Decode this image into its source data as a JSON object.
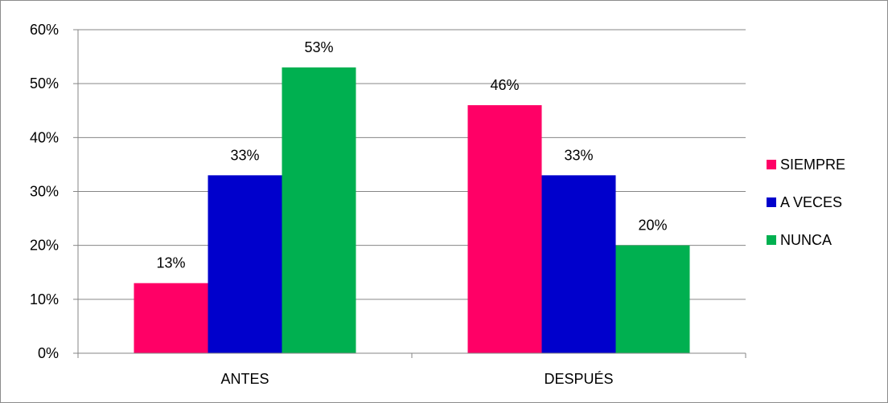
{
  "chart_data": {
    "type": "bar",
    "categories": [
      "ANTES",
      "DESPUÉS"
    ],
    "series": [
      {
        "name": "SIEMPRE",
        "values": [
          13,
          46
        ],
        "labels": [
          "13%",
          "46%"
        ],
        "color": "#ff0066"
      },
      {
        "name": "A VECES",
        "values": [
          33,
          33
        ],
        "labels": [
          "33%",
          "33%"
        ],
        "color": "#0000cc"
      },
      {
        "name": "NUNCA",
        "values": [
          53,
          20
        ],
        "labels": [
          "53%",
          "20%"
        ],
        "color": "#00b050"
      }
    ],
    "ylim": [
      0,
      60
    ],
    "yticks": [
      0,
      10,
      20,
      30,
      40,
      50,
      60
    ],
    "ytick_labels": [
      "0%",
      "10%",
      "20%",
      "30%",
      "40%",
      "50%",
      "60%"
    ],
    "grid": true,
    "legend_position": "right",
    "gridline_color": "#868686"
  }
}
